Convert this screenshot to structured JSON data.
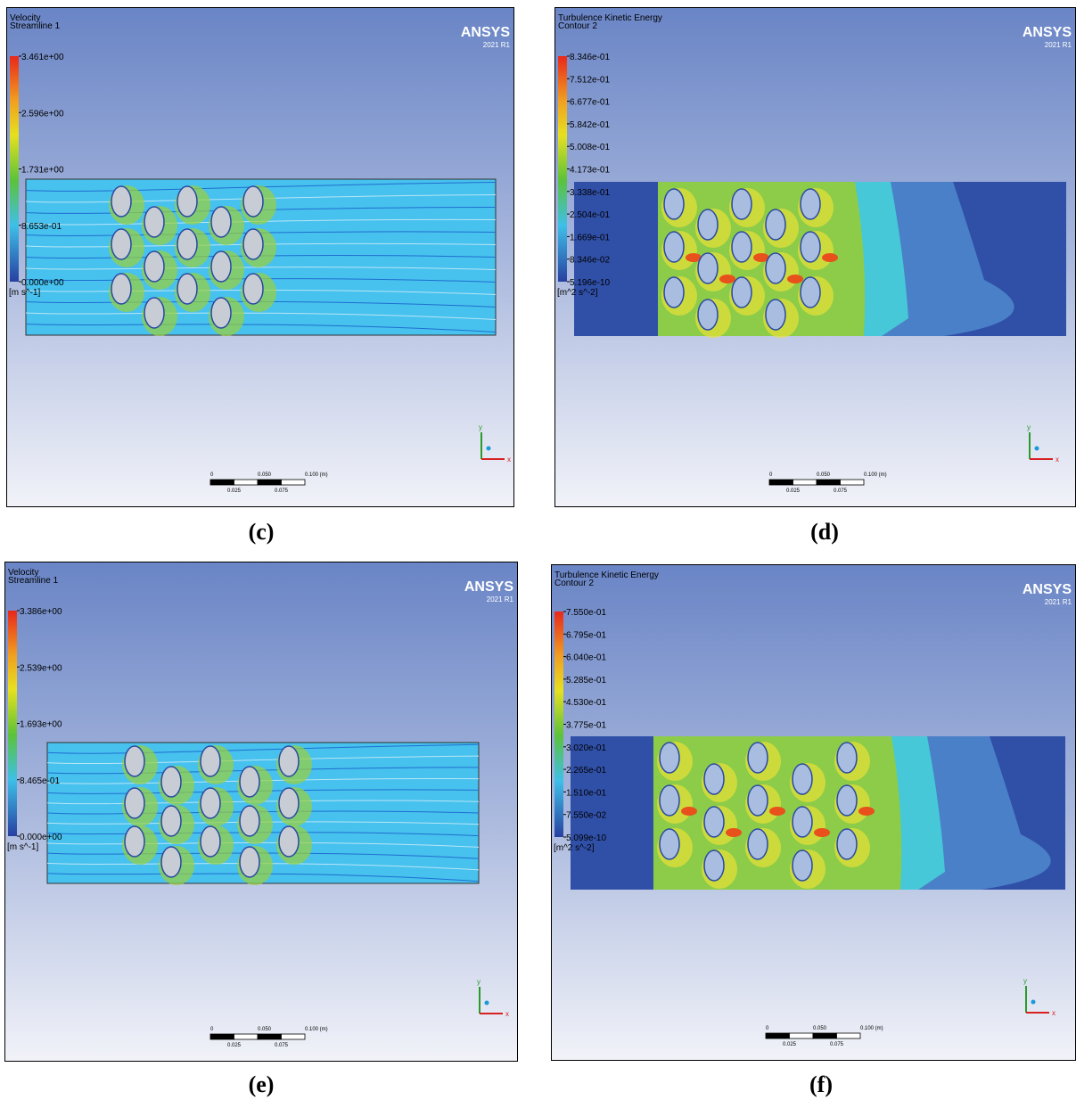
{
  "panels": [
    {
      "title": "Velocity",
      "subtitle": "Streamline 1",
      "legend": [
        "3.461e+00",
        "2.596e+00",
        "1.731e+00",
        "8.653e-01",
        "0.000e+00"
      ],
      "unit": "[m s^-1]",
      "brand": "ANSYS",
      "version": "2021 R1",
      "scale_top": [
        "0",
        "0.050",
        "0.100 (m)"
      ],
      "scale_bottom": [
        "0.025",
        "0.075"
      ],
      "axes": [
        "y",
        "x"
      ],
      "caption": "(c)"
    },
    {
      "title": "Turbulence Kinetic Energy",
      "subtitle": "Contour 2",
      "legend": [
        "8.346e-01",
        "7.512e-01",
        "6.677e-01",
        "5.842e-01",
        "5.008e-01",
        "4.173e-01",
        "3.338e-01",
        "2.504e-01",
        "1.669e-01",
        "8.346e-02",
        "5.196e-10"
      ],
      "unit": "[m^2 s^-2]",
      "brand": "ANSYS",
      "version": "2021 R1",
      "scale_top": [
        "0",
        "0.050",
        "0.100 (m)"
      ],
      "scale_bottom": [
        "0.025",
        "0.075"
      ],
      "axes": [
        "y",
        "x"
      ],
      "caption": "(d)"
    },
    {
      "title": "Velocity",
      "subtitle": "Streamline 1",
      "legend": [
        "3.386e+00",
        "2.539e+00",
        "1.693e+00",
        "8.465e-01",
        "0.000e+00"
      ],
      "unit": "[m s^-1]",
      "brand": "ANSYS",
      "version": "2021 R1",
      "scale_top": [
        "0",
        "0.050",
        "0.100 (m)"
      ],
      "scale_bottom": [
        "0.025",
        "0.075"
      ],
      "axes": [
        "y",
        "x"
      ],
      "caption": "(e)"
    },
    {
      "title": "Turbulence Kinetic Energy",
      "subtitle": "Contour 2",
      "legend": [
        "7.550e-01",
        "6.795e-01",
        "6.040e-01",
        "5.285e-01",
        "4.530e-01",
        "3.775e-01",
        "3.020e-01",
        "2.265e-01",
        "1.510e-01",
        "7.550e-02",
        "5.099e-10"
      ],
      "unit": "[m^2 s^-2]",
      "brand": "ANSYS",
      "version": "2021 R1",
      "scale_top": [
        "0",
        "0.050",
        "0.100 (m)"
      ],
      "scale_bottom": [
        "0.025",
        "0.075"
      ],
      "axes": [
        "y",
        "x"
      ],
      "caption": "(f)"
    }
  ]
}
